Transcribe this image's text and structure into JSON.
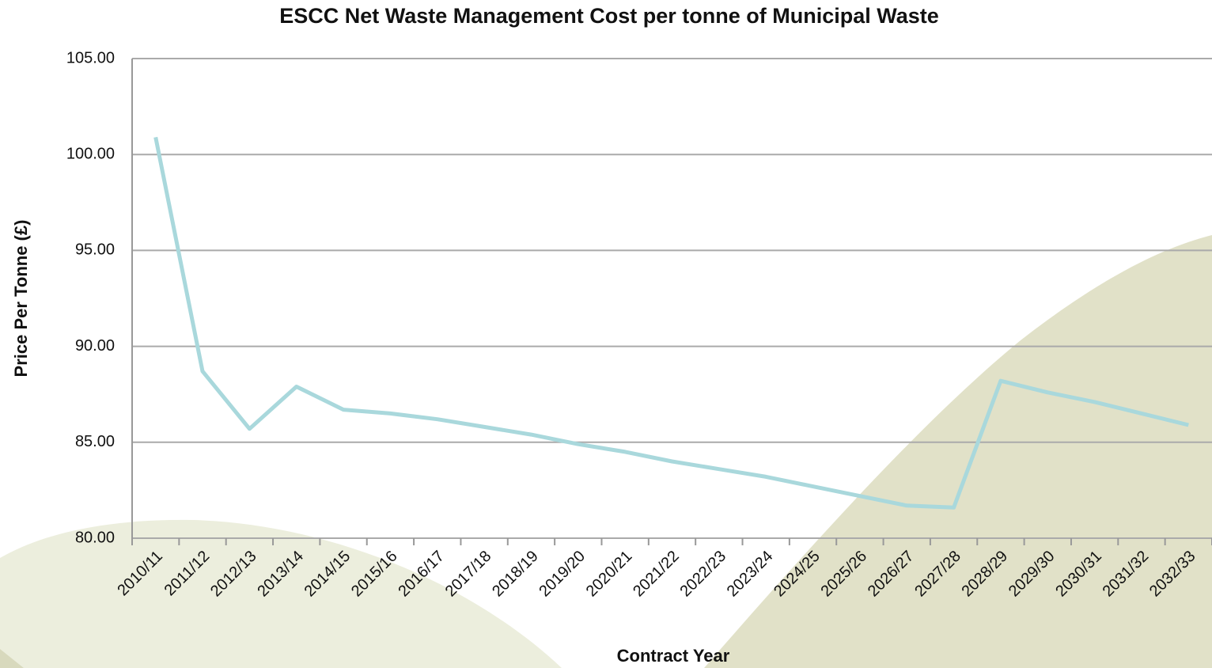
{
  "chart_data": {
    "type": "line",
    "title": "ESCC Net Waste Management Cost per tonne of Municipal Waste",
    "x_label": "Contract Year",
    "y_label": "Price Per Tonne (£)",
    "categories": [
      "2010/11",
      "2011/12",
      "2012/13",
      "2013/14",
      "2014/15",
      "2015/16",
      "2016/17",
      "2017/18",
      "2018/19",
      "2019/20",
      "2020/21",
      "2021/22",
      "2022/23",
      "2023/24",
      "2024/25",
      "2025/26",
      "2026/27",
      "2027/28",
      "2028/29",
      "2029/30",
      "2030/31",
      "2031/32",
      "2032/33"
    ],
    "values": [
      100.9,
      88.7,
      85.7,
      87.9,
      86.7,
      86.5,
      86.2,
      85.8,
      85.4,
      84.9,
      84.5,
      84.0,
      83.6,
      83.2,
      82.7,
      82.2,
      81.7,
      81.6,
      88.2,
      87.6,
      87.1,
      86.5,
      85.9
    ],
    "color": "#a9d8dc",
    "ylim": [
      80,
      105
    ],
    "yticks": [
      {
        "value": 80,
        "label": "80.00"
      },
      {
        "value": 85,
        "label": "85.00"
      },
      {
        "value": 90,
        "label": "90.00"
      },
      {
        "value": 95,
        "label": "95.00"
      },
      {
        "value": 100,
        "label": "100.00"
      },
      {
        "value": 105,
        "label": "105.00"
      }
    ],
    "grid": true
  }
}
